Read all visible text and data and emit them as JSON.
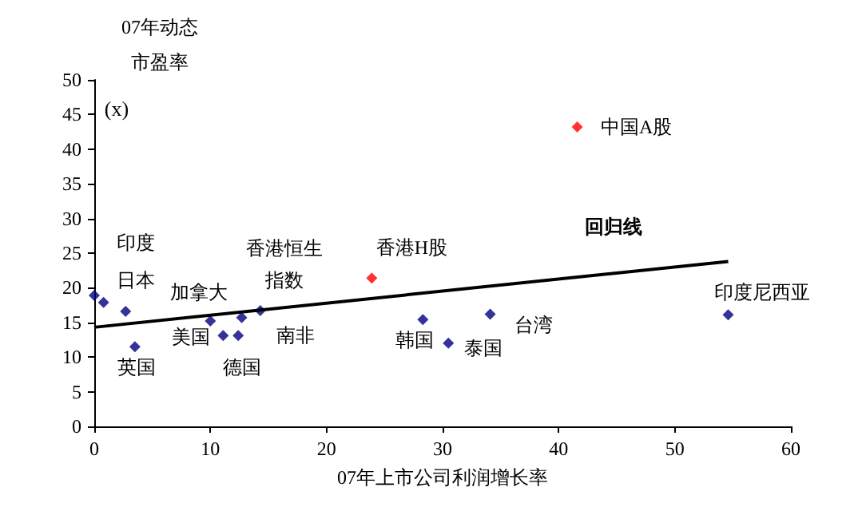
{
  "chart_data": {
    "type": "scatter",
    "xlabel": "07年上市公司利润增长率",
    "ylabel": "07年动态市盈率",
    "series": [
      {
        "color": "#000080",
        "x": [
          0,
          0.8,
          2.7,
          3.5,
          10,
          11.1,
          12.4,
          12.7,
          14.3,
          28.3,
          30.5,
          34.1,
          54.6
        ],
        "values": [
          18.9,
          17.9,
          16.6,
          11.5,
          15.2,
          13.1,
          13.1,
          15.7,
          16.7,
          15.4,
          12.0,
          16.2,
          16.1
        ]
      },
      {
        "type": "scatter",
        "color": "#ff0000",
        "x": [
          23.9,
          41.6
        ],
        "values": [
          21.4,
          43.2
        ]
      },
      {
        "type": "line",
        "marker": "none",
        "color": "#000000",
        "x": [
          0,
          54.6
        ],
        "values": [
          14.3,
          23.8
        ]
      }
    ],
    "xlim": [
      0,
      60
    ],
    "xticks": [
      0,
      10,
      20,
      30,
      40,
      50,
      60
    ],
    "ylim": [
      0,
      50
    ],
    "yticks": [
      0,
      5,
      10,
      15,
      20,
      25,
      30,
      35,
      40,
      45,
      50
    ],
    "grid": false,
    "marker": "diamond",
    "line_style": "solid",
    "annotations": [
      "(x)",
      "回归线",
      {
        "text": "印度",
        "x": 0,
        "y": 18.9
      },
      {
        "text": "日本",
        "x": 0.8,
        "y": 17.9
      },
      {
        "text": "英国",
        "x": 3.5,
        "y": 11.5
      },
      {
        "text": "加拿大",
        "x": 12.7,
        "y": 15.7
      },
      {
        "text": "美国",
        "x": 10,
        "y": 15.2
      },
      {
        "text": "德国",
        "x": 11.1,
        "y": 13.1
      },
      {
        "text": "南非",
        "x": 12.4,
        "y": 13.1
      },
      {
        "text": "香港恒生指数",
        "x": 14.3,
        "y": 16.7
      },
      {
        "text": "香港H股",
        "x": 23.9,
        "y": 21.4
      },
      {
        "text": "韩国",
        "x": 28.3,
        "y": 15.4
      },
      {
        "text": "泰国",
        "x": 30.5,
        "y": 12.0
      },
      {
        "text": "台湾",
        "x": 34.1,
        "y": 16.2
      },
      {
        "text": "印度尼西亚",
        "x": 54.6,
        "y": 16.1
      },
      {
        "text": "中国A股",
        "x": 41.6,
        "y": 43.2
      }
    ]
  }
}
